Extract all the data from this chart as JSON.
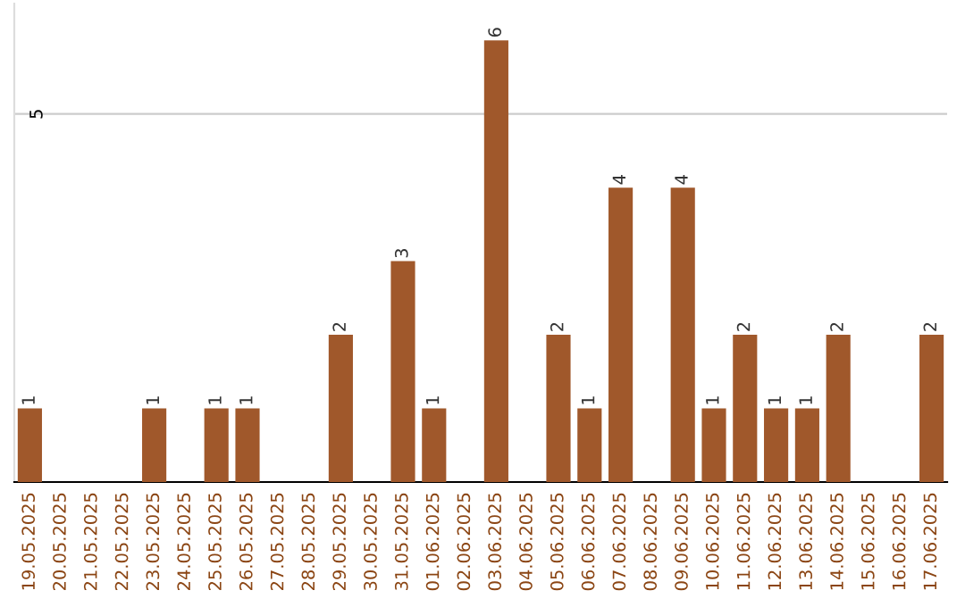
{
  "chart_data": {
    "type": "bar",
    "categories": [
      "19.05.2025",
      "20.05.2025",
      "21.05.2025",
      "22.05.2025",
      "23.05.2025",
      "24.05.2025",
      "25.05.2025",
      "26.05.2025",
      "27.05.2025",
      "28.05.2025",
      "29.05.2025",
      "30.05.2025",
      "31.05.2025",
      "01.06.2025",
      "02.06.2025",
      "03.06.2025",
      "04.06.2025",
      "05.06.2025",
      "06.06.2025",
      "07.06.2025",
      "08.06.2025",
      "09.06.2025",
      "10.06.2025",
      "11.06.2025",
      "12.06.2025",
      "13.06.2025",
      "14.06.2025",
      "15.06.2025",
      "16.06.2025",
      "17.06.2025"
    ],
    "values": [
      1,
      0,
      0,
      0,
      1,
      0,
      1,
      1,
      0,
      0,
      2,
      0,
      3,
      1,
      0,
      6,
      0,
      2,
      1,
      4,
      0,
      4,
      1,
      2,
      1,
      1,
      2,
      0,
      0,
      2
    ],
    "value_labels": [
      "1",
      null,
      null,
      null,
      "1",
      null,
      "1",
      "1",
      null,
      null,
      "2",
      null,
      "3",
      "1",
      null,
      "6",
      null,
      "2",
      "1",
      "4",
      null,
      "4",
      "1",
      "2",
      "1",
      "1",
      "2",
      null,
      null,
      "2"
    ],
    "color": "#a0582b",
    "ylim": [
      0,
      6.5
    ],
    "yticks": [
      5
    ],
    "grid": "y",
    "legend": false
  }
}
